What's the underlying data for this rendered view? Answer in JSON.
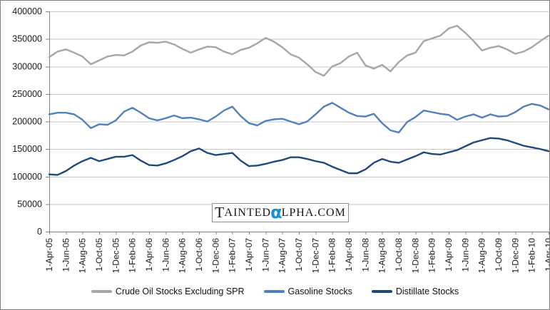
{
  "watermark": {
    "initial": "T",
    "name_rest": "AINTED",
    "alpha_char": "α",
    "suffix": "LPHA.COM",
    "alpha_color": "#1291d6"
  },
  "colors": {
    "gridline": "#c6c6c6",
    "axis": "#828282",
    "tick": "#828282",
    "axis_label": "#1a1a1a",
    "background": "#ffffff",
    "frame_border": "#7e7e7e"
  },
  "chart_data": {
    "type": "line",
    "title": "",
    "xlabel": "",
    "ylabel": "",
    "ylim": [
      0,
      400000
    ],
    "y_tick_step": 50000,
    "y_tick_labels": [
      "0",
      "50000",
      "100000",
      "150000",
      "200000",
      "250000",
      "300000",
      "350000",
      "400000"
    ],
    "grid": "horizontal-only",
    "legend_position": "bottom",
    "x_start": "1-Apr-05",
    "x_end": "1-Apr-10",
    "x_resolution": "monthly values, ticks every 2 months",
    "x_tick_labels": [
      "1-Apr-05",
      "1-Jun-05",
      "1-Aug-05",
      "1-Oct-05",
      "1-Dec-05",
      "1-Feb-06",
      "1-Apr-06",
      "1-Jun-06",
      "1-Aug-06",
      "1-Oct-06",
      "1-Dec-06",
      "1-Feb-07",
      "1-Apr-07",
      "1-Jun-07",
      "1-Aug-07",
      "1-Oct-07",
      "1-Dec-07",
      "1-Feb-08",
      "1-Apr-08",
      "1-Jun-08",
      "1-Aug-08",
      "1-Oct-08",
      "1-Dec-08",
      "1-Feb-09",
      "1-Apr-09",
      "1-Jun-09",
      "1-Aug-09",
      "1-Oct-09",
      "1-Dec-09",
      "1-Feb-10",
      "1-Apr-10"
    ],
    "series": [
      {
        "name": "Crude Oil Stocks Excluding SPR",
        "color": "#a6a6a6",
        "values": [
          317000,
          327000,
          331000,
          325000,
          318000,
          304000,
          311000,
          318000,
          321000,
          320000,
          327000,
          338000,
          344000,
          343000,
          345000,
          340000,
          332000,
          325000,
          331000,
          336000,
          335000,
          327000,
          322000,
          330000,
          334000,
          342000,
          352000,
          345000,
          335000,
          322000,
          316000,
          304000,
          290000,
          283000,
          300000,
          306000,
          318000,
          325000,
          302000,
          296000,
          303000,
          291000,
          308000,
          320000,
          325000,
          346000,
          351000,
          356000,
          369000,
          374000,
          361000,
          346000,
          329000,
          334000,
          337000,
          331000,
          323000,
          327000,
          335000,
          346000,
          356000
        ]
      },
      {
        "name": "Gasoline Stocks",
        "color": "#4f81bd",
        "values": [
          213000,
          216000,
          216000,
          213000,
          203000,
          188000,
          195000,
          194000,
          202000,
          218000,
          225000,
          216000,
          206000,
          202000,
          206000,
          211000,
          206000,
          207000,
          204000,
          200000,
          209000,
          220000,
          227000,
          210000,
          197000,
          193000,
          201000,
          204000,
          205000,
          200000,
          195000,
          200000,
          213000,
          227000,
          234000,
          225000,
          216000,
          210000,
          209000,
          214000,
          197000,
          184000,
          180000,
          199000,
          208000,
          220000,
          217000,
          214000,
          212000,
          203000,
          209000,
          213000,
          207000,
          213000,
          209000,
          210000,
          217000,
          227000,
          232000,
          229000,
          222000
        ]
      },
      {
        "name": "Distillate Stocks",
        "color": "#1f497d",
        "values": [
          104000,
          103000,
          110000,
          120000,
          128000,
          134000,
          128000,
          132000,
          136000,
          136000,
          139000,
          129000,
          121000,
          120000,
          124000,
          130000,
          137000,
          146000,
          151000,
          143000,
          139000,
          141000,
          143000,
          129000,
          119000,
          120000,
          123000,
          127000,
          130000,
          135000,
          135000,
          132000,
          128000,
          125000,
          118000,
          112000,
          106000,
          106000,
          113000,
          125000,
          132000,
          127000,
          125000,
          131000,
          137000,
          144000,
          141000,
          140000,
          144000,
          148000,
          155000,
          162000,
          166000,
          170000,
          169000,
          166000,
          161000,
          156000,
          153000,
          150000,
          146000
        ]
      }
    ]
  }
}
